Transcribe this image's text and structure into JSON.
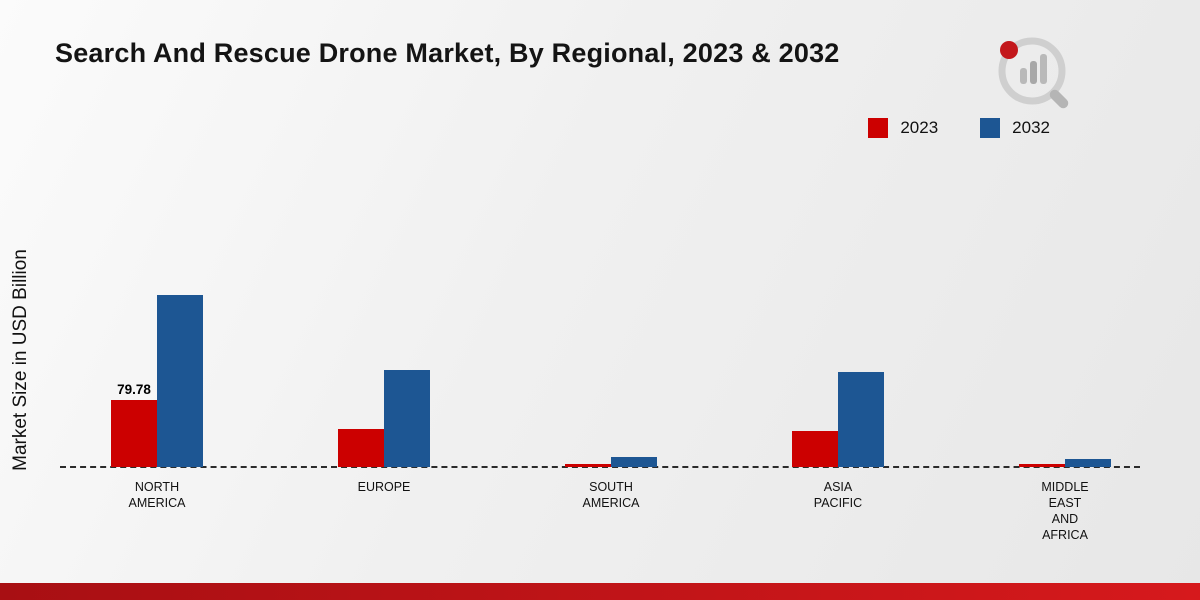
{
  "header": {
    "title": "Search And Rescue Drone Market, By Regional, 2023 & 2032"
  },
  "colors": {
    "series_2023": "#cc0000",
    "series_2032": "#1d5693",
    "footer_left": "#a80f13",
    "footer_right": "#d6191c"
  },
  "chart_data": {
    "type": "bar",
    "title": "Search And Rescue Drone Market, By Regional, 2023 & 2032",
    "ylabel": "Market Size in USD Billion",
    "categories": [
      {
        "label": "NORTH AMERICA",
        "lines": [
          "NORTH",
          "AMERICA"
        ]
      },
      {
        "label": "EUROPE",
        "lines": [
          "EUROPE"
        ]
      },
      {
        "label": "SOUTH AMERICA",
        "lines": [
          "SOUTH",
          "AMERICA"
        ]
      },
      {
        "label": "ASIA PACIFIC",
        "lines": [
          "ASIA",
          "PACIFIC"
        ]
      },
      {
        "label": "MIDDLE EAST AND AFRICA",
        "lines": [
          "MIDDLE",
          "EAST",
          "AND",
          "AFRICA"
        ]
      }
    ],
    "series": [
      {
        "name": "2023",
        "color": "#cc0000",
        "values": [
          79.78,
          45,
          4,
          43,
          4
        ]
      },
      {
        "name": "2032",
        "color": "#1d5693",
        "values": [
          205,
          115,
          12,
          113,
          10
        ]
      }
    ],
    "annotations": [
      {
        "category_index": 0,
        "series_index": 0,
        "text": "79.78"
      }
    ],
    "ylim": [
      0,
      220
    ],
    "grid": false,
    "legend_position": "top-right",
    "baseline_style": "dashed"
  }
}
